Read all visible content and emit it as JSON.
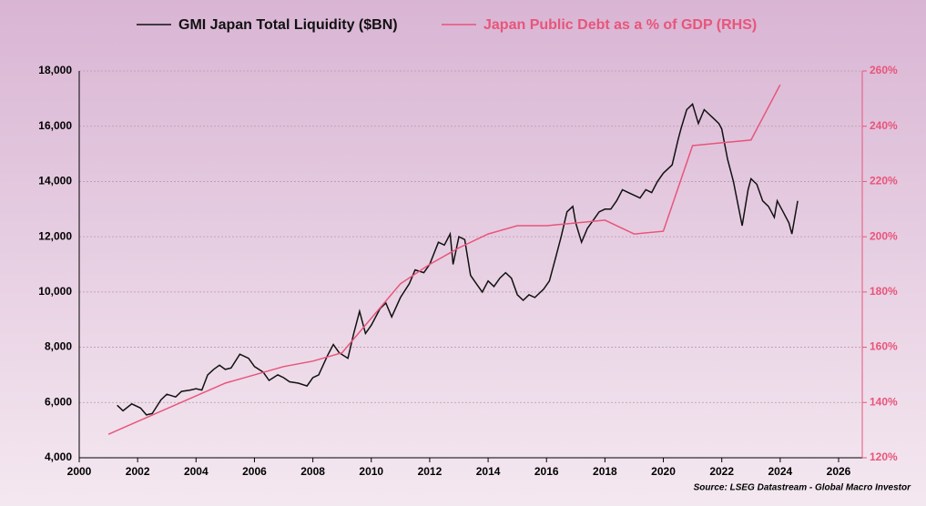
{
  "chart_data": {
    "type": "line",
    "source": "Source: LSEG Datastream - Global Macro Investor",
    "xlim": [
      2000,
      2026
    ],
    "xticks": [
      2000,
      2002,
      2004,
      2006,
      2008,
      2010,
      2012,
      2014,
      2016,
      2018,
      2020,
      2022,
      2024,
      2026
    ],
    "ylim": [
      4000,
      18000
    ],
    "yticks": [
      {
        "value": 4000,
        "label": "4,000"
      },
      {
        "value": 6000,
        "label": "6,000"
      },
      {
        "value": 8000,
        "label": "8,000"
      },
      {
        "value": 10000,
        "label": "10,000"
      },
      {
        "value": 12000,
        "label": "12,000"
      },
      {
        "value": 14000,
        "label": "14,000"
      },
      {
        "value": 16000,
        "label": "16,000"
      },
      {
        "value": 18000,
        "label": "18,000"
      }
    ],
    "y2lim": [
      120,
      260
    ],
    "y2ticks": [
      {
        "value": 120,
        "label": "120%"
      },
      {
        "value": 140,
        "label": "140%"
      },
      {
        "value": 160,
        "label": "160%"
      },
      {
        "value": 180,
        "label": "180%"
      },
      {
        "value": 200,
        "label": "200%"
      },
      {
        "value": 220,
        "label": "220%"
      },
      {
        "value": 240,
        "label": "240%"
      },
      {
        "value": 260,
        "label": "260%"
      }
    ],
    "grid": true,
    "series": [
      {
        "name": "GMI Japan Total Liquidity ($BN)",
        "color": "#111111",
        "x": [
          2001.3,
          2001.5,
          2001.8,
          2002.1,
          2002.3,
          2002.5,
          2002.8,
          2003.0,
          2003.3,
          2003.5,
          2003.8,
          2004.0,
          2004.2,
          2004.4,
          2004.6,
          2004.8,
          2005.0,
          2005.2,
          2005.5,
          2005.8,
          2006.0,
          2006.3,
          2006.5,
          2006.8,
          2007.0,
          2007.2,
          2007.5,
          2007.8,
          2008.0,
          2008.2,
          2008.5,
          2008.7,
          2008.9,
          2009.2,
          2009.4,
          2009.6,
          2009.8,
          2010.0,
          2010.3,
          2010.5,
          2010.7,
          2011.0,
          2011.3,
          2011.5,
          2011.8,
          2012.0,
          2012.3,
          2012.5,
          2012.7,
          2012.8,
          2013.0,
          2013.2,
          2013.4,
          2013.6,
          2013.8,
          2014.0,
          2014.2,
          2014.4,
          2014.6,
          2014.8,
          2015.0,
          2015.2,
          2015.4,
          2015.6,
          2015.9,
          2016.1,
          2016.3,
          2016.5,
          2016.7,
          2016.9,
          2017.0,
          2017.2,
          2017.4,
          2017.6,
          2017.8,
          2018.0,
          2018.2,
          2018.4,
          2018.6,
          2018.8,
          2019.0,
          2019.2,
          2019.4,
          2019.6,
          2019.8,
          2020.0,
          2020.3,
          2020.5,
          2020.6,
          2020.8,
          2021.0,
          2021.2,
          2021.4,
          2021.7,
          2021.9,
          2022.0,
          2022.2,
          2022.4,
          2022.7,
          2022.9,
          2023.0,
          2023.2,
          2023.4,
          2023.6,
          2023.8,
          2023.9,
          2024.1,
          2024.3,
          2024.4,
          2024.6
        ],
        "values": [
          5900,
          5700,
          5950,
          5800,
          5550,
          5600,
          6100,
          6300,
          6200,
          6400,
          6450,
          6500,
          6450,
          7000,
          7200,
          7350,
          7200,
          7250,
          7750,
          7600,
          7300,
          7100,
          6800,
          7000,
          6900,
          6750,
          6700,
          6600,
          6900,
          7000,
          7700,
          8100,
          7800,
          7600,
          8500,
          9300,
          8500,
          8800,
          9400,
          9600,
          9100,
          9800,
          10300,
          10800,
          10700,
          11000,
          11800,
          11700,
          12100,
          11000,
          12000,
          11900,
          10600,
          10300,
          10000,
          10400,
          10200,
          10500,
          10700,
          10500,
          9900,
          9700,
          9900,
          9800,
          10100,
          10400,
          11200,
          12000,
          12900,
          13100,
          12500,
          11800,
          12300,
          12600,
          12900,
          13000,
          13000,
          13300,
          13700,
          13600,
          13500,
          13400,
          13700,
          13600,
          14000,
          14300,
          14600,
          15500,
          15900,
          16600,
          16800,
          16100,
          16600,
          16300,
          16100,
          15900,
          14800,
          14000,
          12400,
          13700,
          14100,
          13900,
          13300,
          13100,
          12700,
          13300,
          12900,
          12500,
          12100,
          13300
        ]
      },
      {
        "name": "Japan Public Debt as a % of GDP (RHS)",
        "color": "#e8557a",
        "axis": "y2",
        "x": [
          2001,
          2005,
          2007,
          2008,
          2009,
          2011,
          2012,
          2013,
          2014,
          2015,
          2016,
          2017,
          2018,
          2019,
          2020,
          2021,
          2022,
          2023,
          2024
        ],
        "values": [
          128.5,
          147,
          153,
          155,
          158,
          183,
          190,
          196,
          201,
          204,
          204,
          205,
          206,
          201,
          202,
          233,
          234,
          235,
          255
        ]
      }
    ]
  }
}
